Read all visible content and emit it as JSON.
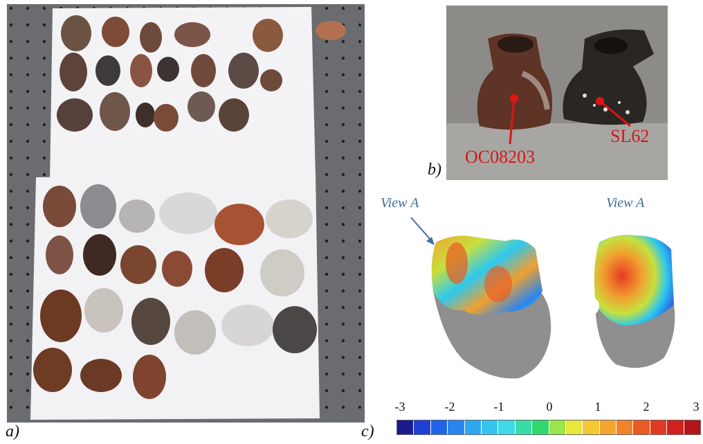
{
  "labels": {
    "a": "a)",
    "b": "b)",
    "c": "c)",
    "view_left": "View A",
    "view_right": "View A",
    "sample_left": "OC08203",
    "sample_right": "SL62"
  },
  "scale": {
    "ticks": [
      "-3",
      "-2",
      "-1",
      "0",
      "1",
      "2",
      "3"
    ],
    "colors": [
      "#1a1a8c",
      "#1f3fd6",
      "#1f63e8",
      "#2a86ee",
      "#2fa6f0",
      "#35c4f0",
      "#3fd8e6",
      "#38dca8",
      "#2fd86c",
      "#9ae64a",
      "#e6e83a",
      "#f3c834",
      "#f3a52e",
      "#f08228",
      "#ea5a24",
      "#e03a22",
      "#d1201e",
      "#b51418"
    ]
  }
}
